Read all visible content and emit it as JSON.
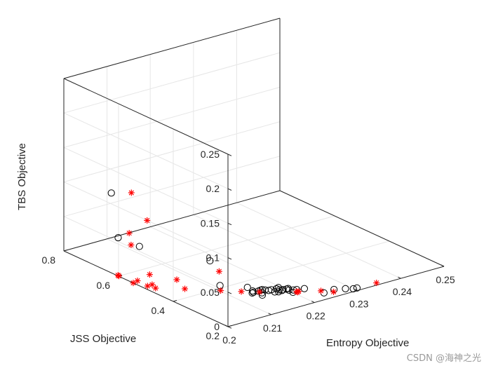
{
  "chart_data": {
    "type": "scatter",
    "projection": "3d",
    "grid": true,
    "xlabel": "Entropy Objective",
    "ylabel": "JSS Objective",
    "zlabel": "TBS Objective",
    "xlim": [
      0.2,
      0.25
    ],
    "ylim": [
      0.2,
      0.8
    ],
    "zlim": [
      0,
      0.25
    ],
    "xticks": [
      "0.2",
      "0.21",
      "0.22",
      "0.23",
      "0.24",
      "0.25"
    ],
    "yticks": [
      "0.2",
      "0.4",
      "0.6",
      "0.8"
    ],
    "zticks": [
      "0",
      "0.05",
      "0.1",
      "0.15",
      "0.2",
      "0.25"
    ],
    "series": [
      {
        "marker": "circle",
        "color": "#000000",
        "points": [
          [
            0.2182,
            0.3025,
            0
          ],
          [
            0.2201,
            0.2798,
            0
          ],
          [
            0.2269,
            0.2373,
            0
          ],
          [
            0.2244,
            0.2345,
            0
          ],
          [
            0.2307,
            0.2133,
            0
          ],
          [
            0.2299,
            0.2141,
            0
          ],
          [
            0.2288,
            0.2254,
            0
          ],
          [
            0.2188,
            0.3203,
            0
          ],
          [
            0.2178,
            0.3225,
            0
          ],
          [
            0.2215,
            0.2883,
            0
          ],
          [
            0.2229,
            0.2824,
            0
          ],
          [
            0.2147,
            0.3421,
            0
          ],
          [
            0.2144,
            0.3344,
            0
          ],
          [
            0.2155,
            0.3338,
            0
          ],
          [
            0.2168,
            0.3296,
            0
          ],
          [
            0.2195,
            0.3067,
            0
          ],
          [
            0.2202,
            0.3051,
            0
          ],
          [
            0.2202,
            0.2961,
            0
          ],
          [
            0.2191,
            0.3041,
            0
          ],
          [
            0.2209,
            0.291,
            0
          ],
          [
            0.2176,
            0.3069,
            0
          ],
          [
            0.2148,
            0.3082,
            0
          ],
          [
            0.2155,
            0.3203,
            0
          ],
          [
            0.2172,
            0.3226,
            0
          ],
          [
            0.214,
            0.3325,
            0
          ],
          [
            0.2165,
            0.3355,
            0
          ],
          [
            0.2161,
            0.3354,
            0
          ],
          [
            0.2206,
            0.3051,
            0
          ],
          [
            0.2189,
            0.311,
            0
          ],
          [
            0.2195,
            0.3235,
            0
          ],
          [
            0.2117,
            0.414,
            0
          ],
          [
            0.218,
            0.55,
            0
          ],
          [
            0.214,
            0.35,
            0.005
          ],
          [
            0.208,
            0.65,
            0.02
          ],
          [
            0.2012,
            0.6203,
            0.05
          ],
          [
            0.2034,
            0.6801,
            0.1
          ]
        ]
      },
      {
        "marker": "asterisk",
        "color": "#ff0000",
        "points": [
          [
            0.2351,
            0.2115,
            0
          ],
          [
            0.2261,
            0.2261,
            0
          ],
          [
            0.2246,
            0.2487,
            0
          ],
          [
            0.2208,
            0.2745,
            0
          ],
          [
            0.2209,
            0.2788,
            0
          ],
          [
            0.2212,
            0.2765,
            0
          ],
          [
            0.2154,
            0.3277,
            0
          ],
          [
            0.2129,
            0.355,
            0
          ],
          [
            0.2102,
            0.3879,
            0
          ],
          [
            0.2056,
            0.4461,
            0
          ],
          [
            0.2016,
            0.4899,
            0
          ],
          [
            0.2011,
            0.5115,
            0
          ],
          [
            0.2022,
            0.5119,
            0
          ],
          [
            0.2,
            0.5463,
            0
          ],
          [
            0.2013,
            0.5513,
            0
          ],
          [
            0.2073,
            0.5024,
            0
          ],
          [
            0.2001,
            0.6003,
            0
          ],
          [
            0.205,
            0.5651,
            0
          ],
          [
            0.216,
            0.485,
            0
          ],
          [
            0.215,
            0.798,
            0
          ],
          [
            0.2,
            0.602,
            0.001
          ],
          [
            0.201,
            0.57,
            0.049
          ],
          [
            0.203,
            0.543,
            0.086
          ],
          [
            0.215,
            0.79,
            0.06
          ]
        ]
      }
    ]
  },
  "watermark": "CSDN @海神之光"
}
